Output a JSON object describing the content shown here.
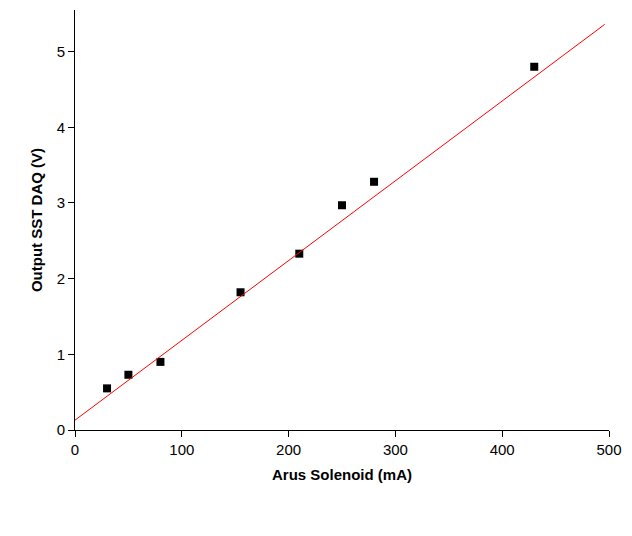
{
  "chart_data": {
    "type": "scatter",
    "x_label": "Arus Solenoid (mA)",
    "y_label": "Output SST DAQ (V)",
    "x": [
      30,
      50,
      80,
      155,
      210,
      250,
      280,
      430
    ],
    "series": [
      {
        "type": "scatter",
        "color": "#000000",
        "marker": "square",
        "values": [
          0.55,
          0.73,
          0.9,
          1.82,
          2.33,
          2.97,
          3.28,
          4.8
        ]
      },
      {
        "type": "line",
        "color": "#ff0000",
        "line_style": "solid",
        "x": [
          0,
          496
        ],
        "values": [
          0.13,
          5.36
        ]
      }
    ],
    "xlim": [
      0,
      500
    ],
    "xticks": [
      0,
      100,
      200,
      300,
      400,
      500
    ],
    "ylim": [
      0,
      5.55
    ],
    "yticks": [
      0,
      1,
      2,
      3,
      4,
      5
    ],
    "grid": false
  }
}
